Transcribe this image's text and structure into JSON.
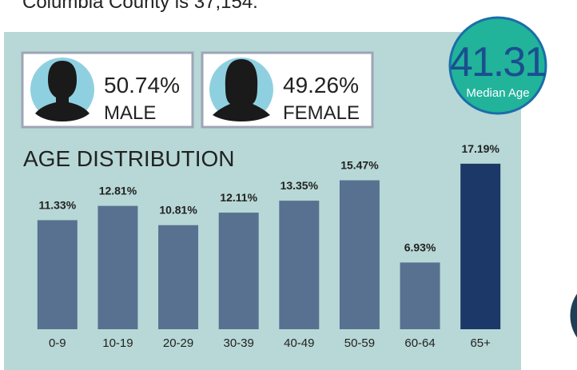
{
  "intro": "Columbia County is 37,154.",
  "median_age": {
    "value": "41.31",
    "label": "Median Age"
  },
  "gender": [
    {
      "share": "50.74%",
      "label": "MALE"
    },
    {
      "share": "49.26%",
      "label": "FEMALE"
    }
  ],
  "chart_data": {
    "type": "bar",
    "title": "AGE DISTRIBUTION",
    "categories": [
      "0-9",
      "10-19",
      "20-29",
      "30-39",
      "40-49",
      "50-59",
      "60-64",
      "65+"
    ],
    "values": [
      11.33,
      12.81,
      10.81,
      12.11,
      13.35,
      15.47,
      6.93,
      17.19
    ],
    "value_labels": [
      "11.33%",
      "12.81%",
      "10.81%",
      "12.11%",
      "13.35%",
      "15.47%",
      "6.93%",
      "17.19%"
    ],
    "colors": [
      "#587190",
      "#587190",
      "#587190",
      "#587190",
      "#587190",
      "#587190",
      "#587190",
      "#1c3868"
    ],
    "ylim": [
      0,
      20
    ]
  }
}
